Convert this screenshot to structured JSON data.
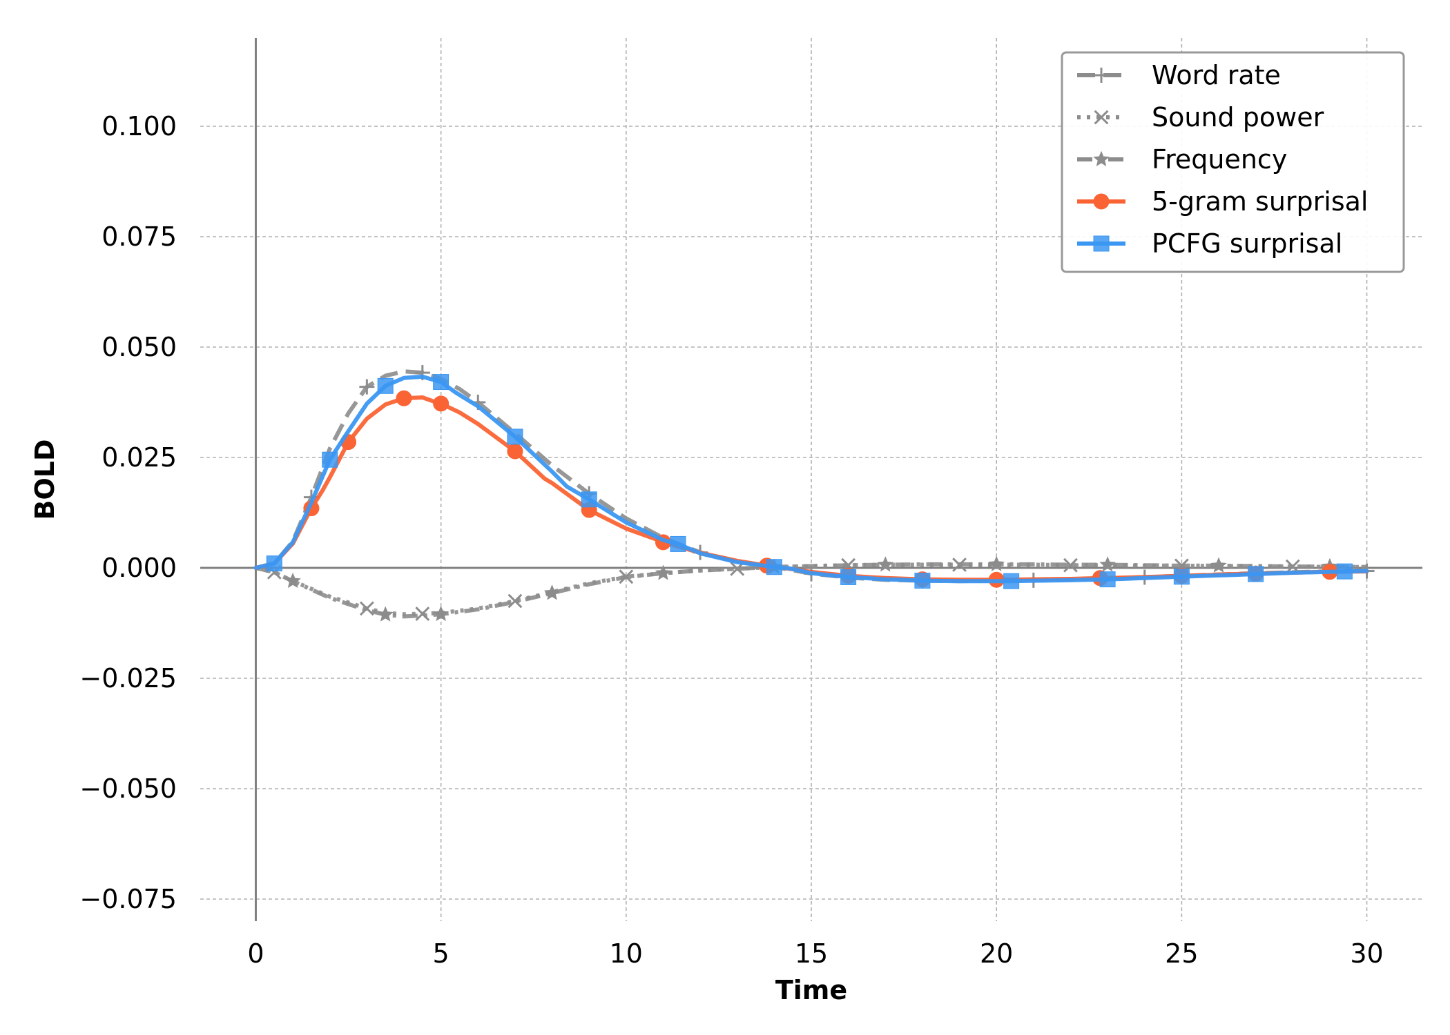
{
  "chart_data": {
    "type": "line",
    "xlabel": "Time",
    "ylabel": "BOLD",
    "xlim": [
      -1.5,
      31.5
    ],
    "ylim": [
      -0.08,
      0.12
    ],
    "xticks": [
      0,
      5,
      10,
      15,
      20,
      25,
      30
    ],
    "yticks": [
      -0.075,
      -0.05,
      -0.025,
      0.0,
      0.025,
      0.05,
      0.075,
      0.1
    ],
    "xtick_labels": [
      "0",
      "5",
      "10",
      "15",
      "20",
      "25",
      "30"
    ],
    "ytick_labels": [
      "−0.075",
      "−0.050",
      "−0.025",
      "0.000",
      "0.025",
      "0.050",
      "0.075",
      "0.100"
    ],
    "grid": true,
    "legend_position": "top-right",
    "series": [
      {
        "name": "Word rate",
        "color": "#8c8c8c",
        "marker": "plus",
        "line_style": "dashed",
        "x": [
          0,
          0.5,
          1,
          1.5,
          2,
          2.5,
          3,
          3.5,
          4,
          4.5,
          5,
          5.5,
          6,
          7,
          8,
          9,
          10,
          11,
          12,
          13,
          14,
          15,
          16,
          17,
          18,
          19,
          20,
          21,
          22,
          23,
          24,
          25,
          26,
          27,
          28,
          29,
          30
        ],
        "values": [
          0,
          0.001,
          0.006,
          0.016,
          0.027,
          0.035,
          0.041,
          0.0435,
          0.0445,
          0.0442,
          0.0428,
          0.0405,
          0.0375,
          0.0305,
          0.0232,
          0.0168,
          0.0112,
          0.0068,
          0.0035,
          0.0014,
          0.0002,
          -0.0013,
          -0.0022,
          -0.0027,
          -0.0029,
          -0.003,
          -0.0029,
          -0.0028,
          -0.0026,
          -0.0024,
          -0.0021,
          -0.0018,
          -0.0015,
          -0.0012,
          -0.001,
          -0.0008,
          -0.0007
        ]
      },
      {
        "name": "Sound power",
        "color": "#8c8c8c",
        "marker": "x",
        "line_style": "dotted",
        "x": [
          0,
          0.5,
          1,
          2,
          3,
          3.5,
          4,
          4.5,
          5,
          6,
          7,
          8,
          9,
          10,
          11,
          12,
          13,
          14,
          15,
          16,
          17,
          18,
          19,
          20,
          21,
          22,
          23,
          24,
          25,
          26,
          27,
          28,
          29,
          30
        ],
        "values": [
          0,
          -0.001,
          -0.003,
          -0.0065,
          -0.0092,
          -0.0102,
          -0.0105,
          -0.0104,
          -0.0102,
          -0.0092,
          -0.0075,
          -0.0055,
          -0.0035,
          -0.002,
          -0.0012,
          -0.0006,
          -0.0002,
          0.0002,
          0.0004,
          0.0006,
          0.0007,
          0.0007,
          0.0007,
          0.0007,
          0.0007,
          0.0006,
          0.0006,
          0.0005,
          0.0005,
          0.0004,
          0.0004,
          0.0003,
          0.0002,
          0.0002
        ]
      },
      {
        "name": "Frequency",
        "color": "#8c8c8c",
        "marker": "star",
        "line_style": "dashdot",
        "x": [
          0,
          0.5,
          1,
          2,
          3,
          3.5,
          4,
          4.5,
          5,
          6,
          7,
          8,
          9,
          10,
          11,
          12,
          13,
          14,
          15,
          16,
          17,
          18,
          19,
          20,
          21,
          22,
          23,
          24,
          25,
          26,
          27,
          28,
          29,
          30
        ],
        "values": [
          0,
          -0.001,
          -0.003,
          -0.0068,
          -0.0096,
          -0.0106,
          -0.011,
          -0.0108,
          -0.0105,
          -0.0094,
          -0.0077,
          -0.0057,
          -0.0037,
          -0.0021,
          -0.0012,
          -0.0006,
          -0.0002,
          0.0002,
          0.0004,
          0.0006,
          0.0007,
          0.0008,
          0.0008,
          0.0008,
          0.0008,
          0.0007,
          0.0007,
          0.0006,
          0.0005,
          0.0005,
          0.0004,
          0.0003,
          0.0003,
          0.0002
        ]
      },
      {
        "name": "5-gram surprisal",
        "color": "#fa6334",
        "marker": "circle",
        "line_style": "solid",
        "x": [
          0,
          0.5,
          1,
          1.5,
          1.8,
          2,
          2.5,
          3,
          3.5,
          4,
          4.5,
          4.8,
          5,
          5.5,
          6,
          7,
          7.8,
          8,
          9,
          10,
          10.8,
          11,
          12,
          13,
          13.8,
          14,
          15,
          16,
          16.8,
          17,
          18,
          19,
          19.8,
          20,
          21,
          22,
          22.8,
          23,
          24,
          25,
          25.8,
          26,
          27,
          28,
          28.8,
          29,
          30
        ],
        "values": [
          0,
          0.001,
          0.0055,
          0.0135,
          0.0175,
          0.0205,
          0.0285,
          0.0338,
          0.037,
          0.0384,
          0.0386,
          0.0377,
          0.0372,
          0.0352,
          0.0326,
          0.0264,
          0.0202,
          0.0192,
          0.0131,
          0.0089,
          0.0065,
          0.0058,
          0.0034,
          0.0016,
          0.0005,
          0.0003,
          -0.0009,
          -0.0018,
          -0.0022,
          -0.0023,
          -0.0026,
          -0.0027,
          -0.0027,
          -0.0027,
          -0.0026,
          -0.0025,
          -0.0023,
          -0.0023,
          -0.0021,
          -0.0018,
          -0.0016,
          -0.0015,
          -0.0013,
          -0.0011,
          -0.0009,
          -0.0009,
          -0.0008
        ]
      },
      {
        "name": "PCFG surprisal",
        "color": "#3b97f2",
        "marker": "square",
        "line_style": "solid",
        "x": [
          0,
          0.5,
          1,
          1.5,
          2,
          2.4,
          3,
          3.5,
          4,
          4.5,
          5,
          5.4,
          6,
          7,
          8,
          8.4,
          9,
          10,
          11,
          11.4,
          12,
          13,
          14,
          14.4,
          15,
          16,
          17,
          17.4,
          18,
          19,
          20,
          20.4,
          21,
          22,
          23,
          23.4,
          24,
          25,
          26,
          26.4,
          27,
          28,
          29,
          29.4,
          30
        ],
        "values": [
          0,
          0.001,
          0.0058,
          0.0148,
          0.0245,
          0.0297,
          0.0372,
          0.0412,
          0.043,
          0.0433,
          0.0421,
          0.0397,
          0.0366,
          0.0297,
          0.0218,
          0.0184,
          0.0155,
          0.0103,
          0.0063,
          0.0054,
          0.0033,
          0.0013,
          0.0002,
          -0.0001,
          -0.0012,
          -0.0021,
          -0.0026,
          -0.0027,
          -0.0029,
          -0.003,
          -0.003,
          -0.003,
          -0.0029,
          -0.0028,
          -0.0026,
          -0.0025,
          -0.0023,
          -0.002,
          -0.0017,
          -0.0016,
          -0.0014,
          -0.0011,
          -0.0009,
          -0.0008,
          -0.0007
        ]
      }
    ]
  }
}
